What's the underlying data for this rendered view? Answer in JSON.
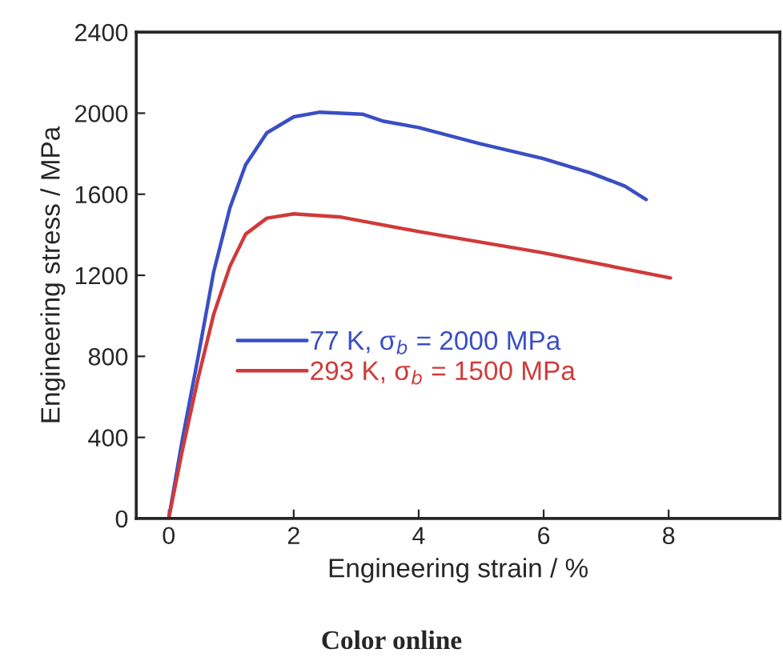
{
  "chart_data": {
    "type": "line",
    "xlabel": "Engineering strain / %",
    "ylabel": "Engineering stress / MPa",
    "xlim": [
      -0.52,
      9.78
    ],
    "xticks": [
      0,
      2,
      4,
      6,
      8
    ],
    "ylim": [
      0,
      2400
    ],
    "yticks": [
      0,
      400,
      800,
      1200,
      1600,
      2000,
      2400
    ],
    "grid": false,
    "legend": "center left",
    "series": [
      {
        "name": "77 K, σ$_{b}$ = 2000 MPa",
        "color": "#3a4fc4",
        "x": [
          0,
          0.21,
          0.47,
          0.72,
          0.98,
          1.23,
          1.57,
          2.0,
          2.42,
          3.1,
          3.44,
          4.0,
          4.97,
          5.99,
          6.75,
          7.3,
          7.64
        ],
        "values": [
          0,
          376,
          797,
          1218,
          1534,
          1745,
          1903,
          1982,
          2005,
          1995,
          1960,
          1929,
          1850,
          1776,
          1705,
          1640,
          1574
        ]
      },
      {
        "name": "293 K, σ$_{b}$ = 1500 MPa",
        "color": "#d03a3a",
        "x": [
          0,
          0.21,
          0.47,
          0.72,
          0.98,
          1.23,
          1.57,
          2.0,
          2.76,
          4.0,
          5.99,
          8.03
        ],
        "values": [
          0,
          324,
          692,
          1008,
          1245,
          1403,
          1482,
          1503,
          1487,
          1416,
          1311,
          1187
        ]
      }
    ],
    "annotations": [
      "Color online"
    ]
  }
}
